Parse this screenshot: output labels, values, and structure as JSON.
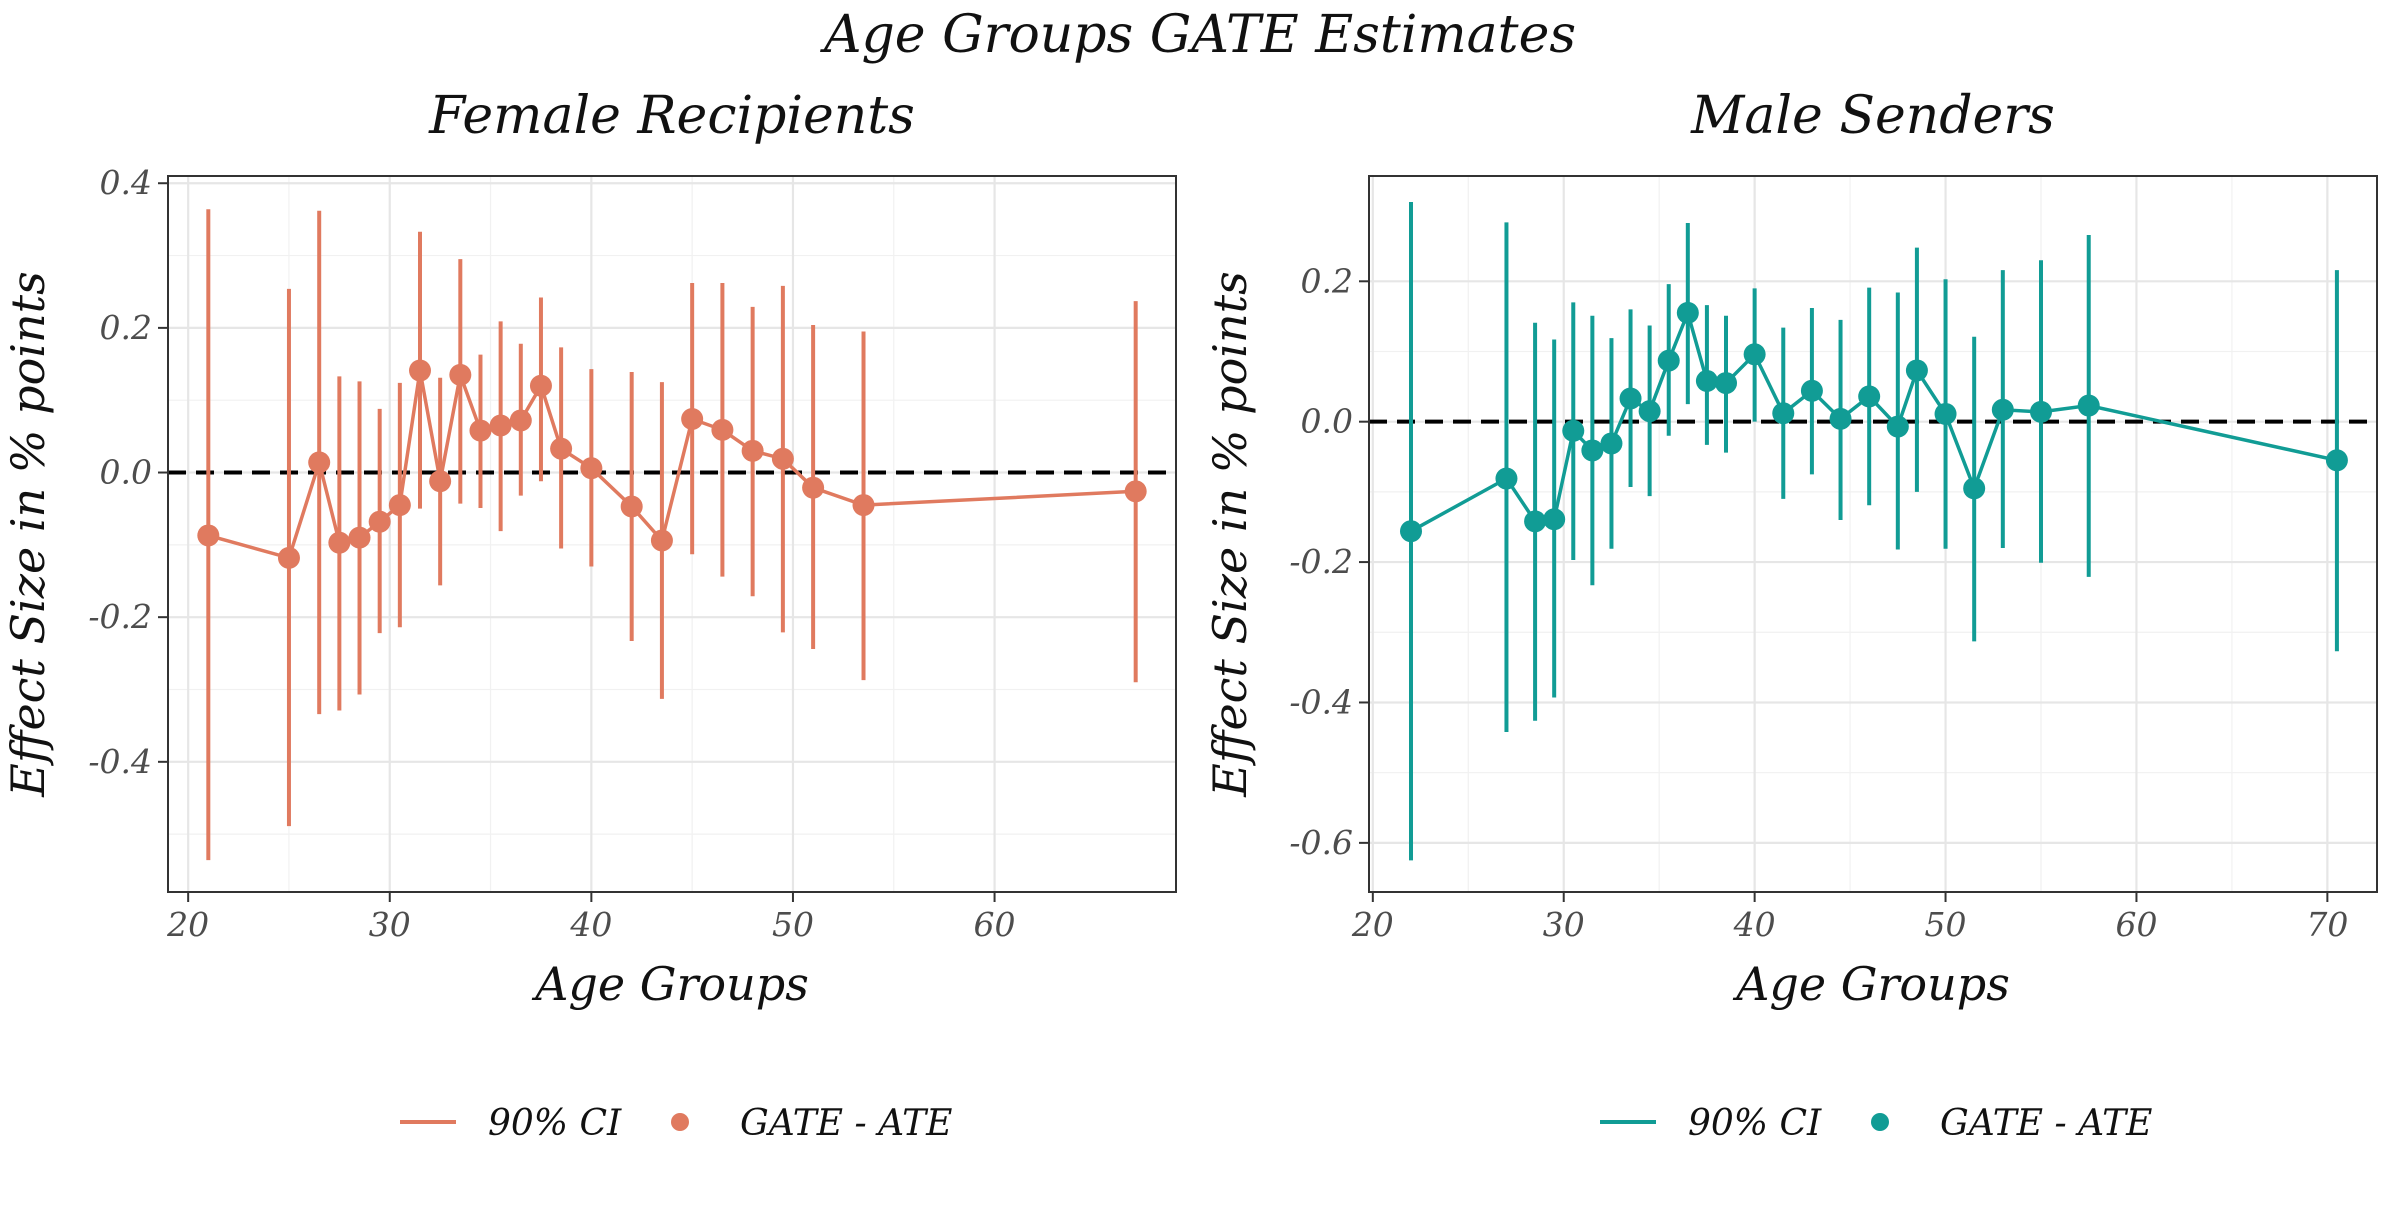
{
  "title": "Age Groups GATE Estimates",
  "chart_data": [
    {
      "type": "line",
      "title": "Female Recipients",
      "xlabel": "Age Groups",
      "ylabel": "Effect Size in % points",
      "xlim": [
        19,
        69
      ],
      "ylim": [
        -0.58,
        0.41
      ],
      "x_ticks": [
        20,
        30,
        40,
        50,
        60
      ],
      "y_ticks": [
        -0.4,
        -0.2,
        0.0,
        0.2,
        0.4
      ],
      "x_tick_labels": [
        "20",
        "30",
        "40",
        "50",
        "60"
      ],
      "y_tick_labels": [
        "-0.4",
        "-0.2",
        "0.0",
        "0.2",
        "0.4"
      ],
      "reference_line": 0.0,
      "color": "#E07A5F",
      "legend": [
        "90% CI",
        "GATE - ATE"
      ],
      "x": [
        21,
        25,
        26.5,
        27.5,
        28.5,
        29.5,
        30.5,
        31.5,
        32.5,
        33.5,
        34.5,
        35.5,
        36.5,
        37.5,
        38.5,
        40,
        42,
        43.5,
        45,
        46.5,
        48,
        49.5,
        51,
        53.5,
        67
      ],
      "y": [
        -0.087,
        -0.118,
        0.014,
        -0.097,
        -0.09,
        -0.068,
        -0.045,
        0.141,
        -0.012,
        0.135,
        0.058,
        0.065,
        0.072,
        0.12,
        0.033,
        0.006,
        -0.047,
        -0.094,
        0.074,
        0.059,
        0.03,
        0.019,
        -0.021,
        -0.045,
        -0.026
      ],
      "ci_lower": [
        -0.536,
        -0.489,
        -0.334,
        -0.329,
        -0.307,
        -0.222,
        -0.214,
        -0.05,
        -0.156,
        -0.043,
        -0.049,
        -0.081,
        -0.032,
        -0.012,
        -0.105,
        -0.13,
        -0.233,
        -0.313,
        -0.113,
        -0.144,
        -0.171,
        -0.221,
        -0.244,
        -0.287,
        -0.29
      ],
      "ci_upper": [
        0.364,
        0.254,
        0.362,
        0.133,
        0.126,
        0.088,
        0.124,
        0.333,
        0.131,
        0.295,
        0.163,
        0.209,
        0.178,
        0.242,
        0.173,
        0.143,
        0.139,
        0.125,
        0.262,
        0.262,
        0.229,
        0.258,
        0.204,
        0.195,
        0.237
      ]
    },
    {
      "type": "line",
      "title": "Male Senders",
      "xlabel": "Age Groups",
      "ylabel": "Effect Size in % points",
      "xlim": [
        19.8,
        72.6
      ],
      "ylim": [
        -0.67,
        0.35
      ],
      "x_ticks": [
        20,
        30,
        40,
        50,
        60,
        70
      ],
      "y_ticks": [
        -0.6,
        -0.4,
        -0.2,
        0.0,
        0.2
      ],
      "x_tick_labels": [
        "20",
        "30",
        "40",
        "50",
        "60",
        "70"
      ],
      "y_tick_labels": [
        "-0.6",
        "-0.4",
        "-0.2",
        "0.0",
        "0.2"
      ],
      "reference_line": 0.0,
      "color": "#119C95",
      "legend": [
        "90% CI",
        "GATE - ATE"
      ],
      "x": [
        22,
        27,
        28.5,
        29.5,
        30.5,
        31.5,
        32.5,
        33.5,
        34.5,
        35.5,
        36.5,
        37.5,
        38.5,
        40,
        41.5,
        43,
        44.5,
        46,
        47.5,
        48.5,
        50,
        51.5,
        53,
        55,
        57.5,
        70.5
      ],
      "y": [
        -0.156,
        -0.081,
        -0.142,
        -0.139,
        -0.013,
        -0.041,
        -0.031,
        0.033,
        0.015,
        0.087,
        0.155,
        0.058,
        0.055,
        0.096,
        0.012,
        0.044,
        0.004,
        0.036,
        -0.007,
        0.073,
        0.011,
        -0.095,
        0.017,
        0.014,
        0.023,
        -0.055
      ],
      "ci_lower": [
        -0.625,
        -0.442,
        -0.426,
        -0.393,
        -0.197,
        -0.233,
        -0.181,
        -0.093,
        -0.106,
        -0.02,
        0.025,
        -0.033,
        -0.044,
        0.0,
        -0.11,
        -0.075,
        -0.14,
        -0.119,
        -0.182,
        -0.1,
        -0.181,
        -0.313,
        -0.18,
        -0.201,
        -0.221,
        -0.327
      ],
      "ci_upper": [
        0.313,
        0.284,
        0.141,
        0.117,
        0.17,
        0.151,
        0.119,
        0.16,
        0.137,
        0.196,
        0.283,
        0.166,
        0.151,
        0.19,
        0.134,
        0.162,
        0.145,
        0.191,
        0.184,
        0.248,
        0.203,
        0.121,
        0.216,
        0.23,
        0.266,
        0.216
      ]
    }
  ]
}
